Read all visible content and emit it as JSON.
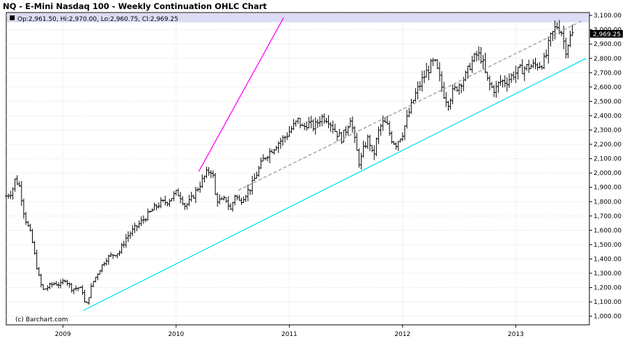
{
  "title": "NQ - E-Mini Nasdaq 100 - Weekly Continuation OHLC Chart",
  "ohlc_label": "Op:2,961.50, Hi:2,970.00, Lo:2,960.75, Cl:2,969.25",
  "credit": "(c) Barchart.com",
  "last_price_label": "2,969.25",
  "colors": {
    "bars": "#000000",
    "upper_channel": "#ff00ff",
    "lower_channel": "#00e5ee",
    "mid_channel": "#999999",
    "grid": "#d8d8d8",
    "info_band": "#dcdcf4"
  },
  "chart_data": {
    "type": "ohlc",
    "frequency": "weekly",
    "x_tick_labels": [
      "2009",
      "2010",
      "2011",
      "2012",
      "2013"
    ],
    "y_tick_labels": [
      "1,000.00",
      "1,100.00",
      "1,200.00",
      "1,300.00",
      "1,400.00",
      "1,500.00",
      "1,600.00",
      "1,700.00",
      "1,800.00",
      "1,900.00",
      "2,000.00",
      "2,100.00",
      "2,200.00",
      "2,300.00",
      "2,400.00",
      "2,500.00",
      "2,600.00",
      "2,700.00",
      "2,800.00",
      "2,900.00",
      "3,000.00",
      "3,100.00"
    ],
    "ylim": [
      940,
      3120
    ],
    "xlim": [
      2008.5,
      2013.65
    ],
    "grid": true,
    "y_axis_side": "right",
    "price_path": [
      [
        2008.5,
        1840
      ],
      [
        2008.55,
        1870
      ],
      [
        2008.58,
        1960
      ],
      [
        2008.62,
        1900
      ],
      [
        2008.66,
        1700
      ],
      [
        2008.72,
        1560
      ],
      [
        2008.78,
        1300
      ],
      [
        2008.82,
        1180
      ],
      [
        2008.86,
        1200
      ],
      [
        2008.92,
        1230
      ],
      [
        2008.98,
        1220
      ],
      [
        2009.02,
        1260
      ],
      [
        2009.08,
        1190
      ],
      [
        2009.14,
        1200
      ],
      [
        2009.18,
        1170
      ],
      [
        2009.2,
        1050
      ],
      [
        2009.26,
        1230
      ],
      [
        2009.32,
        1320
      ],
      [
        2009.38,
        1400
      ],
      [
        2009.44,
        1430
      ],
      [
        2009.5,
        1450
      ],
      [
        2009.56,
        1550
      ],
      [
        2009.62,
        1600
      ],
      [
        2009.68,
        1650
      ],
      [
        2009.74,
        1700
      ],
      [
        2009.8,
        1750
      ],
      [
        2009.86,
        1790
      ],
      [
        2009.92,
        1800
      ],
      [
        2010.0,
        1860
      ],
      [
        2010.03,
        1850
      ],
      [
        2010.08,
        1770
      ],
      [
        2010.12,
        1800
      ],
      [
        2010.18,
        1880
      ],
      [
        2010.24,
        1960
      ],
      [
        2010.28,
        2010
      ],
      [
        2010.32,
        2020
      ],
      [
        2010.35,
        1820
      ],
      [
        2010.4,
        1800
      ],
      [
        2010.44,
        1820
      ],
      [
        2010.48,
        1740
      ],
      [
        2010.52,
        1850
      ],
      [
        2010.56,
        1800
      ],
      [
        2010.6,
        1840
      ],
      [
        2010.66,
        1900
      ],
      [
        2010.72,
        2010
      ],
      [
        2010.78,
        2110
      ],
      [
        2010.84,
        2160
      ],
      [
        2010.9,
        2210
      ],
      [
        2010.96,
        2250
      ],
      [
        2011.04,
        2330
      ],
      [
        2011.08,
        2370
      ],
      [
        2011.12,
        2310
      ],
      [
        2011.16,
        2350
      ],
      [
        2011.22,
        2320
      ],
      [
        2011.28,
        2390
      ],
      [
        2011.34,
        2380
      ],
      [
        2011.4,
        2300
      ],
      [
        2011.46,
        2240
      ],
      [
        2011.5,
        2300
      ],
      [
        2011.54,
        2390
      ],
      [
        2011.58,
        2210
      ],
      [
        2011.62,
        2060
      ],
      [
        2011.66,
        2180
      ],
      [
        2011.7,
        2250
      ],
      [
        2011.74,
        2100
      ],
      [
        2011.78,
        2270
      ],
      [
        2011.82,
        2350
      ],
      [
        2011.86,
        2340
      ],
      [
        2011.9,
        2240
      ],
      [
        2011.94,
        2200
      ],
      [
        2012.0,
        2280
      ],
      [
        2012.06,
        2430
      ],
      [
        2012.12,
        2560
      ],
      [
        2012.18,
        2660
      ],
      [
        2012.24,
        2740
      ],
      [
        2012.28,
        2780
      ],
      [
        2012.32,
        2680
      ],
      [
        2012.36,
        2560
      ],
      [
        2012.4,
        2490
      ],
      [
        2012.44,
        2560
      ],
      [
        2012.48,
        2600
      ],
      [
        2012.52,
        2640
      ],
      [
        2012.56,
        2680
      ],
      [
        2012.6,
        2760
      ],
      [
        2012.66,
        2830
      ],
      [
        2012.7,
        2800
      ],
      [
        2012.74,
        2660
      ],
      [
        2012.78,
        2600
      ],
      [
        2012.82,
        2580
      ],
      [
        2012.86,
        2640
      ],
      [
        2012.92,
        2640
      ],
      [
        2012.98,
        2690
      ],
      [
        2013.04,
        2720
      ],
      [
        2013.1,
        2740
      ],
      [
        2013.16,
        2750
      ],
      [
        2013.22,
        2760
      ],
      [
        2013.26,
        2790
      ],
      [
        2013.3,
        2930
      ],
      [
        2013.36,
        3030
      ],
      [
        2013.4,
        3000
      ],
      [
        2013.44,
        2860
      ],
      [
        2013.48,
        2950
      ],
      [
        2013.5,
        2969.25
      ]
    ],
    "trend_lines": [
      {
        "style": "solid",
        "color": "magenta",
        "start": [
          2010.2,
          2010
        ],
        "end": [
          2010.95,
          3085
        ]
      },
      {
        "style": "dashed",
        "color": "gray",
        "start": [
          2010.55,
          1880
        ],
        "end": [
          2013.58,
          3060
        ]
      },
      {
        "style": "solid",
        "color": "cyan",
        "start": [
          2009.18,
          1040
        ],
        "end": [
          2013.62,
          2800
        ]
      }
    ]
  }
}
